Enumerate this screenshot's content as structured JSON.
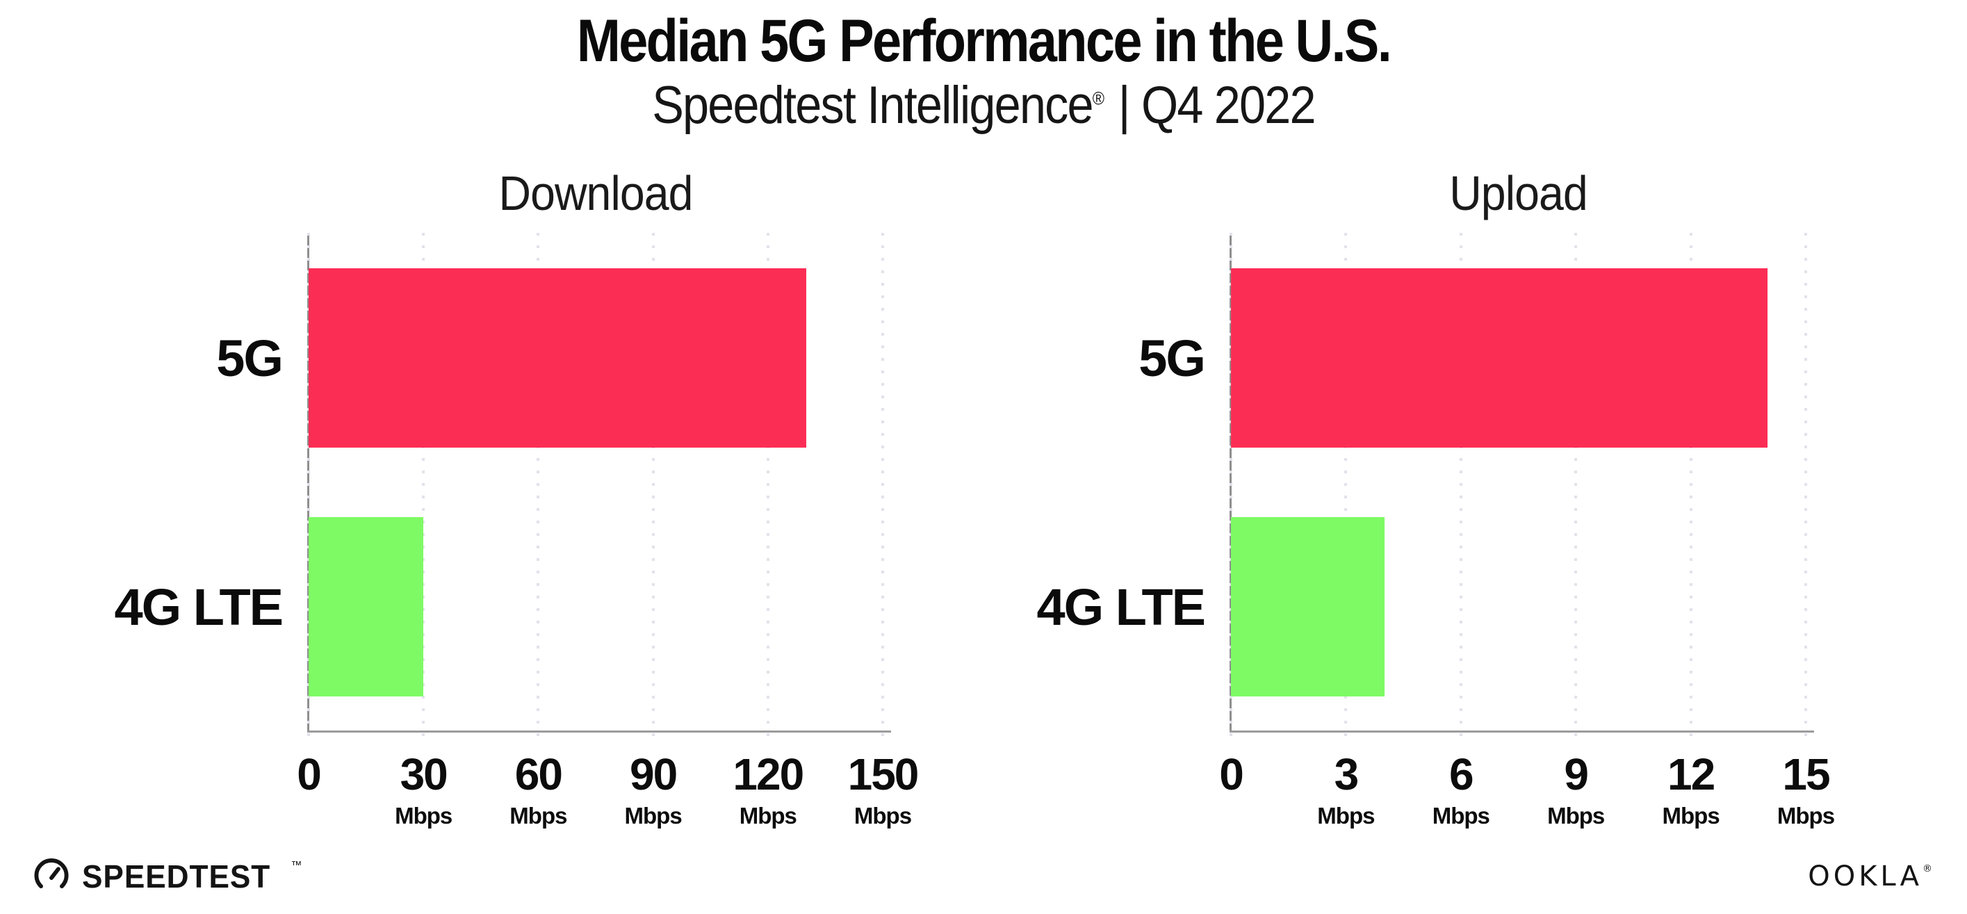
{
  "header": {
    "title": "Median 5G Performance in the U.S.",
    "subtitle_brand": "Speedtest Intelligence",
    "subtitle_reg": "®",
    "subtitle_rest": "| Q4 2022"
  },
  "chart_data": [
    {
      "type": "bar",
      "orientation": "horizontal",
      "title": "Download",
      "categories": [
        "5G",
        "4G LTE"
      ],
      "values": [
        130,
        30
      ],
      "unit": "Mbps",
      "xlabel": "",
      "ylabel": "",
      "xlim": [
        0,
        150
      ],
      "xticks": [
        0,
        30,
        60,
        90,
        120,
        150
      ],
      "bar_colors": [
        "#FC2D55",
        "#7EFA64"
      ],
      "grid": "dotted vertical gridlines at each tick",
      "legend": "none"
    },
    {
      "type": "bar",
      "orientation": "horizontal",
      "title": "Upload",
      "categories": [
        "5G",
        "4G LTE"
      ],
      "values": [
        14,
        4
      ],
      "unit": "Mbps",
      "xlabel": "",
      "ylabel": "",
      "xlim": [
        0,
        15
      ],
      "xticks": [
        0,
        3,
        6,
        9,
        12,
        15
      ],
      "bar_colors": [
        "#FC2D55",
        "#7EFA64"
      ],
      "grid": "dotted vertical gridlines at each tick",
      "legend": "none"
    }
  ],
  "footer": {
    "speedtest_label": "SPEEDTEST",
    "speedtest_tm": "™",
    "ookla_label": "OOKLA",
    "ookla_reg": "®"
  },
  "colors": {
    "bar_5g": "#FC2D55",
    "bar_4g_lte": "#7EFA64",
    "gridline": "#E2E2EB",
    "axis_spine": "#9B9B9B",
    "text": "#0D0D0D"
  }
}
